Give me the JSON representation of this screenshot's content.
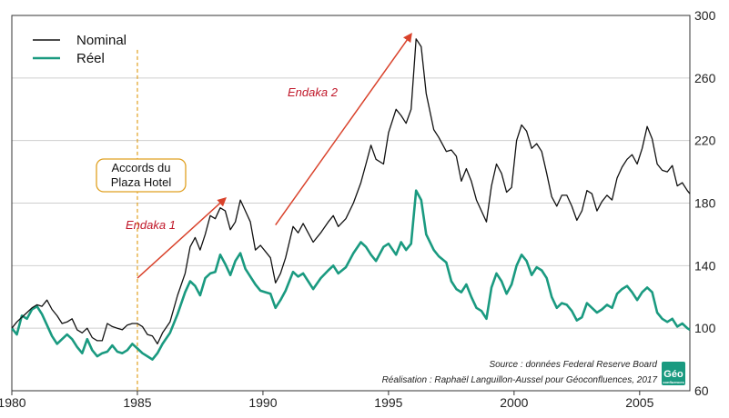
{
  "chart_data": {
    "type": "line",
    "title": "",
    "xlabel": "",
    "ylabel": "",
    "xlim": [
      1980,
      2007
    ],
    "ylim": [
      60,
      300
    ],
    "x_ticks": [
      "1980",
      "1985",
      "1990",
      "1995",
      "2000",
      "2005"
    ],
    "y_ticks": [
      "60",
      "100",
      "140",
      "180",
      "220",
      "260",
      "300"
    ],
    "grid": "horizontal",
    "legend_position": "top-left",
    "series": [
      {
        "name": "Nominal",
        "color": "#111111",
        "points": [
          [
            1980.0,
            100
          ],
          [
            1980.2,
            104
          ],
          [
            1980.4,
            107
          ],
          [
            1980.6,
            110
          ],
          [
            1980.8,
            113
          ],
          [
            1981.0,
            115
          ],
          [
            1981.2,
            114
          ],
          [
            1981.4,
            118
          ],
          [
            1981.6,
            112
          ],
          [
            1981.8,
            108
          ],
          [
            1982.0,
            103
          ],
          [
            1982.2,
            104
          ],
          [
            1982.4,
            106
          ],
          [
            1982.6,
            99
          ],
          [
            1982.8,
            97
          ],
          [
            1983.0,
            100
          ],
          [
            1983.2,
            94
          ],
          [
            1983.4,
            92
          ],
          [
            1983.6,
            92
          ],
          [
            1983.8,
            103
          ],
          [
            1984.0,
            101
          ],
          [
            1984.2,
            100
          ],
          [
            1984.4,
            99
          ],
          [
            1984.6,
            102
          ],
          [
            1984.8,
            103
          ],
          [
            1985.0,
            103
          ],
          [
            1985.2,
            101
          ],
          [
            1985.4,
            96
          ],
          [
            1985.6,
            95
          ],
          [
            1985.8,
            90
          ],
          [
            1986.0,
            97
          ],
          [
            1986.3,
            104
          ],
          [
            1986.6,
            121
          ],
          [
            1986.9,
            135
          ],
          [
            1987.1,
            152
          ],
          [
            1987.3,
            158
          ],
          [
            1987.5,
            150
          ],
          [
            1987.7,
            160
          ],
          [
            1987.9,
            172
          ],
          [
            1988.1,
            170
          ],
          [
            1988.3,
            177
          ],
          [
            1988.5,
            175
          ],
          [
            1988.7,
            163
          ],
          [
            1988.9,
            168
          ],
          [
            1989.1,
            182
          ],
          [
            1989.3,
            175
          ],
          [
            1989.5,
            168
          ],
          [
            1989.7,
            150
          ],
          [
            1989.9,
            153
          ],
          [
            1990.1,
            149
          ],
          [
            1990.3,
            145
          ],
          [
            1990.5,
            129
          ],
          [
            1990.7,
            135
          ],
          [
            1990.9,
            145
          ],
          [
            1991.2,
            165
          ],
          [
            1991.4,
            161
          ],
          [
            1991.6,
            167
          ],
          [
            1991.8,
            161
          ],
          [
            1992.0,
            155
          ],
          [
            1992.3,
            161
          ],
          [
            1992.6,
            168
          ],
          [
            1992.8,
            172
          ],
          [
            1993.0,
            165
          ],
          [
            1993.3,
            170
          ],
          [
            1993.6,
            180
          ],
          [
            1993.9,
            193
          ],
          [
            1994.1,
            205
          ],
          [
            1994.3,
            217
          ],
          [
            1994.5,
            208
          ],
          [
            1994.8,
            205
          ],
          [
            1995.0,
            225
          ],
          [
            1995.3,
            240
          ],
          [
            1995.5,
            236
          ],
          [
            1995.7,
            231
          ],
          [
            1995.9,
            240
          ],
          [
            1996.1,
            285
          ],
          [
            1996.3,
            280
          ],
          [
            1996.5,
            250
          ],
          [
            1996.8,
            227
          ],
          [
            1997.0,
            222
          ],
          [
            1997.3,
            213
          ],
          [
            1997.5,
            214
          ],
          [
            1997.7,
            210
          ],
          [
            1997.9,
            194
          ],
          [
            1998.1,
            202
          ],
          [
            1998.3,
            194
          ],
          [
            1998.5,
            182
          ],
          [
            1998.7,
            175
          ],
          [
            1998.9,
            168
          ],
          [
            1999.1,
            191
          ],
          [
            1999.3,
            205
          ],
          [
            1999.5,
            199
          ],
          [
            1999.7,
            187
          ],
          [
            1999.9,
            190
          ],
          [
            2000.1,
            220
          ],
          [
            2000.3,
            230
          ],
          [
            2000.5,
            226
          ],
          [
            2000.7,
            215
          ],
          [
            2000.9,
            218
          ],
          [
            2001.1,
            213
          ],
          [
            2001.3,
            199
          ],
          [
            2001.5,
            184
          ],
          [
            2001.7,
            178
          ],
          [
            2001.9,
            185
          ],
          [
            2002.1,
            185
          ],
          [
            2002.3,
            178
          ],
          [
            2002.5,
            169
          ],
          [
            2002.7,
            175
          ],
          [
            2002.9,
            188
          ],
          [
            2003.1,
            186
          ],
          [
            2003.3,
            175
          ],
          [
            2003.5,
            181
          ],
          [
            2003.7,
            185
          ],
          [
            2003.9,
            182
          ],
          [
            2004.1,
            196
          ],
          [
            2004.3,
            203
          ],
          [
            2004.5,
            208
          ],
          [
            2004.7,
            211
          ],
          [
            2004.9,
            205
          ],
          [
            2005.1,
            215
          ],
          [
            2005.3,
            229
          ],
          [
            2005.5,
            221
          ],
          [
            2005.7,
            205
          ],
          [
            2005.9,
            201
          ],
          [
            2006.1,
            200
          ],
          [
            2006.3,
            204
          ],
          [
            2006.5,
            191
          ],
          [
            2006.7,
            193
          ],
          [
            2006.9,
            188
          ],
          [
            2007.0,
            186
          ]
        ]
      },
      {
        "name": "Réel",
        "color": "#1a9a80",
        "points": [
          [
            1980.0,
            100
          ],
          [
            1980.2,
            96
          ],
          [
            1980.4,
            108
          ],
          [
            1980.6,
            106
          ],
          [
            1980.8,
            112
          ],
          [
            1981.0,
            114
          ],
          [
            1981.2,
            109
          ],
          [
            1981.4,
            102
          ],
          [
            1981.6,
            95
          ],
          [
            1981.8,
            90
          ],
          [
            1982.0,
            93
          ],
          [
            1982.2,
            96
          ],
          [
            1982.4,
            93
          ],
          [
            1982.6,
            88
          ],
          [
            1982.8,
            84
          ],
          [
            1983.0,
            93
          ],
          [
            1983.2,
            86
          ],
          [
            1983.4,
            82
          ],
          [
            1983.6,
            84
          ],
          [
            1983.8,
            85
          ],
          [
            1984.0,
            89
          ],
          [
            1984.2,
            85
          ],
          [
            1984.4,
            84
          ],
          [
            1984.6,
            86
          ],
          [
            1984.8,
            90
          ],
          [
            1985.0,
            87
          ],
          [
            1985.2,
            84
          ],
          [
            1985.4,
            82
          ],
          [
            1985.6,
            80
          ],
          [
            1985.8,
            84
          ],
          [
            1986.0,
            90
          ],
          [
            1986.3,
            97
          ],
          [
            1986.6,
            109
          ],
          [
            1986.9,
            123
          ],
          [
            1987.1,
            130
          ],
          [
            1987.3,
            127
          ],
          [
            1987.5,
            121
          ],
          [
            1987.7,
            132
          ],
          [
            1987.9,
            135
          ],
          [
            1988.1,
            136
          ],
          [
            1988.3,
            147
          ],
          [
            1988.5,
            141
          ],
          [
            1988.7,
            134
          ],
          [
            1988.9,
            143
          ],
          [
            1989.1,
            148
          ],
          [
            1989.3,
            138
          ],
          [
            1989.5,
            133
          ],
          [
            1989.7,
            128
          ],
          [
            1989.9,
            124
          ],
          [
            1990.1,
            123
          ],
          [
            1990.3,
            122
          ],
          [
            1990.5,
            113
          ],
          [
            1990.7,
            118
          ],
          [
            1990.9,
            124
          ],
          [
            1991.2,
            136
          ],
          [
            1991.4,
            133
          ],
          [
            1991.6,
            135
          ],
          [
            1991.8,
            130
          ],
          [
            1992.0,
            125
          ],
          [
            1992.3,
            132
          ],
          [
            1992.6,
            137
          ],
          [
            1992.8,
            140
          ],
          [
            1993.0,
            135
          ],
          [
            1993.3,
            139
          ],
          [
            1993.6,
            148
          ],
          [
            1993.9,
            155
          ],
          [
            1994.1,
            152
          ],
          [
            1994.3,
            147
          ],
          [
            1994.5,
            143
          ],
          [
            1994.8,
            152
          ],
          [
            1995.0,
            154
          ],
          [
            1995.3,
            147
          ],
          [
            1995.5,
            155
          ],
          [
            1995.7,
            150
          ],
          [
            1995.9,
            154
          ],
          [
            1996.1,
            188
          ],
          [
            1996.3,
            182
          ],
          [
            1996.5,
            160
          ],
          [
            1996.8,
            150
          ],
          [
            1997.0,
            146
          ],
          [
            1997.3,
            142
          ],
          [
            1997.5,
            130
          ],
          [
            1997.7,
            125
          ],
          [
            1997.9,
            123
          ],
          [
            1998.1,
            128
          ],
          [
            1998.3,
            120
          ],
          [
            1998.5,
            113
          ],
          [
            1998.7,
            111
          ],
          [
            1998.9,
            106
          ],
          [
            1999.1,
            126
          ],
          [
            1999.3,
            135
          ],
          [
            1999.5,
            130
          ],
          [
            1999.7,
            122
          ],
          [
            1999.9,
            128
          ],
          [
            2000.1,
            140
          ],
          [
            2000.3,
            147
          ],
          [
            2000.5,
            143
          ],
          [
            2000.7,
            134
          ],
          [
            2000.9,
            139
          ],
          [
            2001.1,
            137
          ],
          [
            2001.3,
            132
          ],
          [
            2001.5,
            120
          ],
          [
            2001.7,
            113
          ],
          [
            2001.9,
            116
          ],
          [
            2002.1,
            115
          ],
          [
            2002.3,
            111
          ],
          [
            2002.5,
            105
          ],
          [
            2002.7,
            107
          ],
          [
            2002.9,
            116
          ],
          [
            2003.1,
            113
          ],
          [
            2003.3,
            110
          ],
          [
            2003.5,
            112
          ],
          [
            2003.7,
            115
          ],
          [
            2003.9,
            113
          ],
          [
            2004.1,
            122
          ],
          [
            2004.3,
            125
          ],
          [
            2004.5,
            127
          ],
          [
            2004.7,
            123
          ],
          [
            2004.9,
            118
          ],
          [
            2005.1,
            123
          ],
          [
            2005.3,
            126
          ],
          [
            2005.5,
            123
          ],
          [
            2005.7,
            110
          ],
          [
            2005.9,
            106
          ],
          [
            2006.1,
            104
          ],
          [
            2006.3,
            106
          ],
          [
            2006.5,
            101
          ],
          [
            2006.7,
            103
          ],
          [
            2006.9,
            100
          ],
          [
            2007.0,
            99
          ]
        ]
      }
    ],
    "legend": [
      {
        "label": "Nominal",
        "color": "#111111"
      },
      {
        "label": "Réel",
        "color": "#1a9a80"
      }
    ],
    "annotations": {
      "plaza_line_year": 1985,
      "plaza_label_line1": "Accords du",
      "plaza_label_line2": "Plaza Hotel",
      "endaka1": {
        "label": "Endaka 1",
        "from": [
          1985.0,
          132
        ],
        "to": [
          1988.5,
          183
        ]
      },
      "endaka2": {
        "label": "Endaka 2",
        "from": [
          1990.5,
          166
        ],
        "to": [
          1995.9,
          288
        ]
      },
      "source_line1": "Source :  données Federal Reserve Board",
      "source_line2": "Réalisation : Raphaël Languillon-Aussel pour Géoconfluences, 2017"
    },
    "logo": {
      "text": "Géo",
      "subtext": "confluences",
      "color": "#1a9a80"
    }
  }
}
